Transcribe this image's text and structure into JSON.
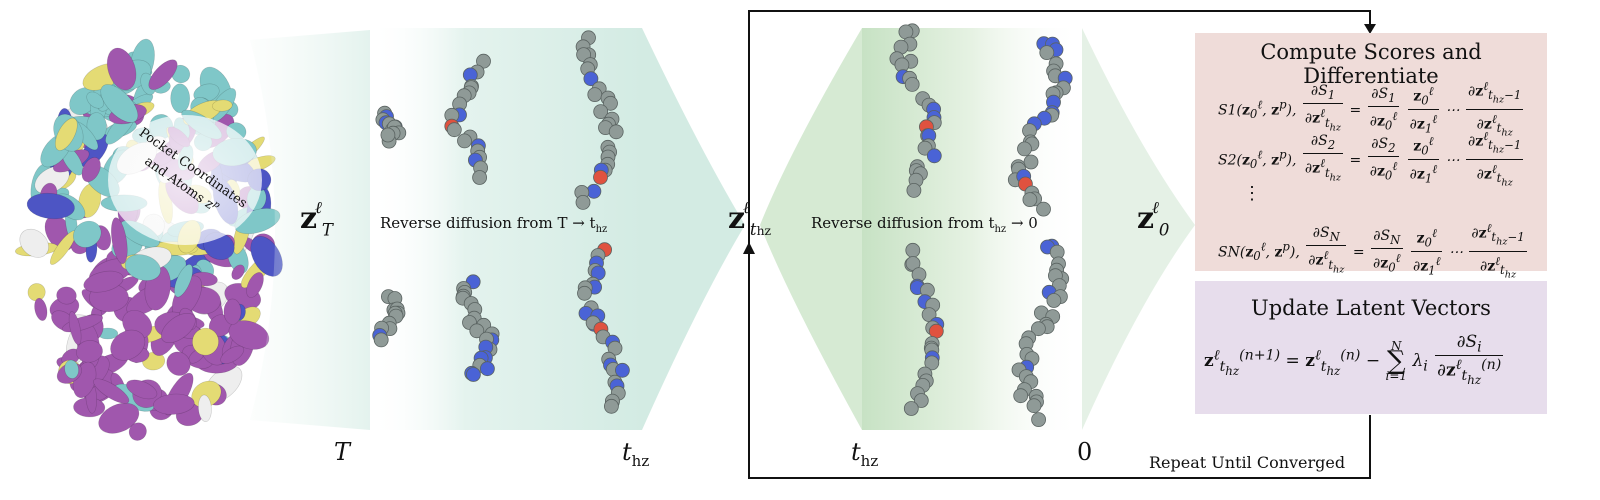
{
  "diagram": {
    "labels": {
      "z_T": {
        "base": "z",
        "sup": "ℓ",
        "sub": "T"
      },
      "z_thz": {
        "base": "z",
        "sup": "ℓ",
        "sub": "t",
        "subsub": "hz"
      },
      "z_0": {
        "base": "z",
        "sup": "ℓ",
        "sub": "0"
      }
    },
    "pocket_label": [
      "Pocket Coordinates",
      "and Atoms z",
      "p"
    ],
    "stage1": {
      "caption": "Reverse diffusion from T → t",
      "caption_sub": "hz",
      "axis_left": "T",
      "axis_right": "t",
      "axis_right_sub": "hz"
    },
    "stage2": {
      "caption": "Reverse diffusion from t",
      "caption_sub": "hz",
      "caption_tail": " → 0",
      "axis_left": "t",
      "axis_left_sub": "hz",
      "axis_right": "0"
    },
    "loop_label": "Repeat Until Converged",
    "scores_panel": {
      "title": "Compute Scores and Differentiate",
      "score_names": [
        "S1",
        "S2",
        "SN"
      ],
      "vdots": "⋮",
      "color": "#efdcd9"
    },
    "update_panel": {
      "title": "Update Latent Vectors",
      "color": "#e7ddec"
    },
    "colors": {
      "atom_grey": "#8f9a97",
      "atom_blue": "#4a63d6",
      "atom_red": "#e0523f",
      "diffusion1_fill": "#d9eee8",
      "diffusion2_fill": "#cfe6cd",
      "protein_cyan": "#7fc7c8",
      "protein_purple": "#a057ad",
      "protein_yellow": "#e4db74",
      "protein_blue": "#4d55c4"
    }
  }
}
